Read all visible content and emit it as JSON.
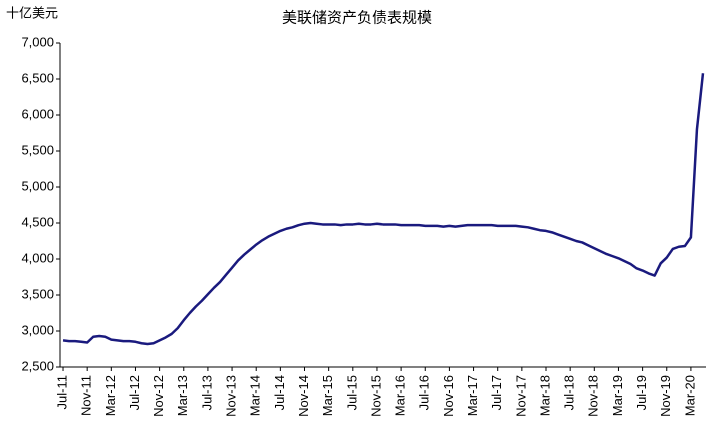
{
  "chart_data": {
    "type": "line",
    "title": "美联储资产负债表规模",
    "y_label": "十亿美元",
    "categories": [
      "Jul-11",
      null,
      null,
      null,
      "Nov-11",
      null,
      null,
      null,
      "Mar-12",
      null,
      null,
      null,
      "Jul-12",
      null,
      null,
      null,
      "Nov-12",
      null,
      null,
      null,
      "Mar-13",
      null,
      null,
      null,
      "Jul-13",
      null,
      null,
      null,
      "Nov-13",
      null,
      null,
      null,
      "Mar-14",
      null,
      null,
      null,
      "Jul-14",
      null,
      null,
      null,
      "Nov-14",
      null,
      null,
      null,
      "Mar-15",
      null,
      null,
      null,
      "Jul-15",
      null,
      null,
      null,
      "Nov-15",
      null,
      null,
      null,
      "Mar-16",
      null,
      null,
      null,
      "Jul-16",
      null,
      null,
      null,
      "Nov-16",
      null,
      null,
      null,
      "Mar-17",
      null,
      null,
      null,
      "Jul-17",
      null,
      null,
      null,
      "Nov-17",
      null,
      null,
      null,
      "Mar-18",
      null,
      null,
      null,
      "Jul-18",
      null,
      null,
      null,
      "Nov-18",
      null,
      null,
      null,
      "Mar-19",
      null,
      null,
      null,
      "Jul-19",
      null,
      null,
      null,
      "Nov-19",
      null,
      null,
      null,
      "Mar-20",
      null,
      null
    ],
    "values": [
      2870,
      2860,
      2860,
      2850,
      2840,
      2920,
      2930,
      2920,
      2880,
      2870,
      2860,
      2860,
      2850,
      2830,
      2820,
      2830,
      2870,
      2910,
      2960,
      3040,
      3150,
      3250,
      3340,
      3420,
      3510,
      3600,
      3680,
      3780,
      3880,
      3980,
      4060,
      4130,
      4200,
      4260,
      4310,
      4350,
      4390,
      4420,
      4440,
      4470,
      4490,
      4500,
      4490,
      4480,
      4480,
      4480,
      4470,
      4480,
      4480,
      4490,
      4480,
      4480,
      4490,
      4480,
      4480,
      4480,
      4470,
      4470,
      4470,
      4470,
      4460,
      4460,
      4460,
      4450,
      4460,
      4450,
      4460,
      4470,
      4470,
      4470,
      4470,
      4470,
      4460,
      4460,
      4460,
      4460,
      4450,
      4440,
      4420,
      4400,
      4390,
      4370,
      4340,
      4310,
      4280,
      4250,
      4230,
      4190,
      4150,
      4110,
      4070,
      4040,
      4010,
      3970,
      3930,
      3870,
      3840,
      3800,
      3770,
      3940,
      4020,
      4140,
      4170,
      4180,
      4300,
      5800,
      6580
    ],
    "color": "#1a1a7e",
    "ylim": [
      2500,
      7000
    ],
    "yticks": [
      {
        "value": 2500,
        "label": "2,500"
      },
      {
        "value": 3000,
        "label": "3,000"
      },
      {
        "value": 3500,
        "label": "3,500"
      },
      {
        "value": 4000,
        "label": "4,000"
      },
      {
        "value": 4500,
        "label": "4,500"
      },
      {
        "value": 5000,
        "label": "5,000"
      },
      {
        "value": 5500,
        "label": "5,500"
      },
      {
        "value": 6000,
        "label": "6,000"
      },
      {
        "value": 6500,
        "label": "6,500"
      },
      {
        "value": 7000,
        "label": "7,000"
      }
    ],
    "grid": false
  }
}
